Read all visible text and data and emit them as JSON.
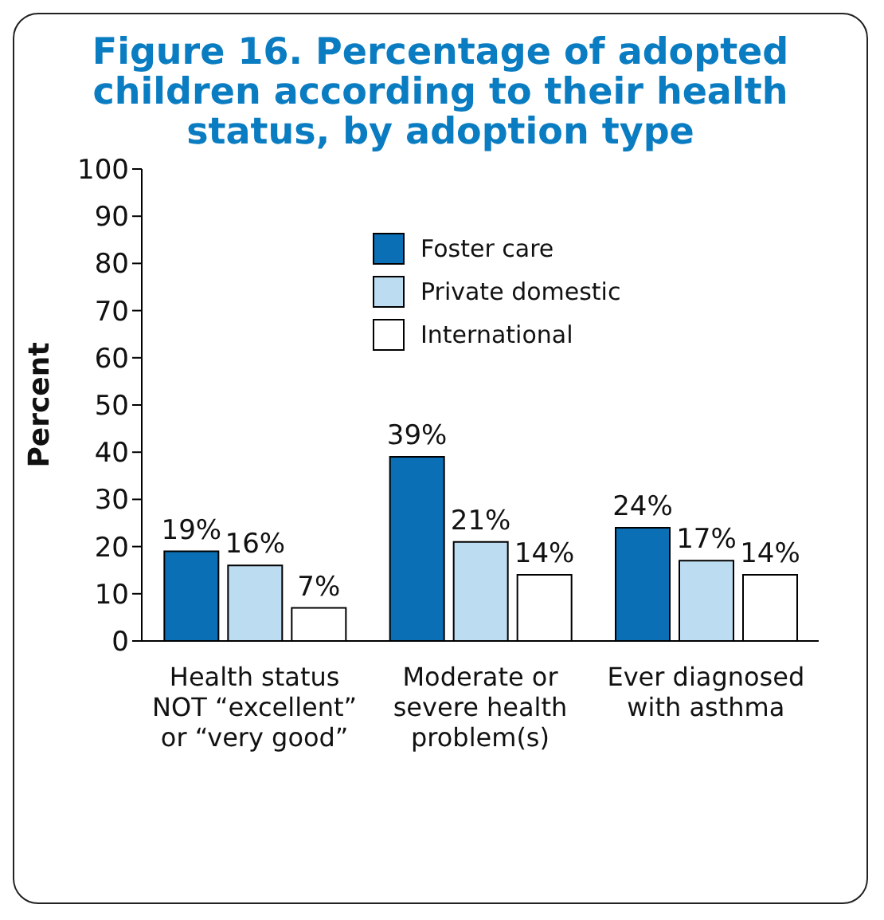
{
  "chart_data": {
    "type": "bar",
    "title": "Figure 16. Percentage of adopted children according to their health status, by adoption type",
    "ylabel": "Percent",
    "categories": [
      "Health status NOT “excellent” or “very good”",
      "Moderate or severe health problem(s)",
      "Ever diagnosed with asthma"
    ],
    "series": [
      {
        "name": "Foster care",
        "color": "#0a6fb5",
        "values": [
          19,
          39,
          24
        ],
        "value_labels": [
          "19%",
          "39%",
          "24%"
        ]
      },
      {
        "name": "Private domestic",
        "color": "#bcdcf1",
        "values": [
          16,
          21,
          17
        ],
        "value_labels": [
          "16%",
          "21%",
          "17%"
        ]
      },
      {
        "name": "International",
        "color": "#ffffff",
        "values": [
          7,
          14,
          14
        ],
        "value_labels": [
          "7%",
          "14%",
          "14%"
        ]
      }
    ],
    "ylim": [
      0,
      100
    ],
    "yticks": [
      0,
      10,
      20,
      30,
      40,
      50,
      60,
      70,
      80,
      90,
      100
    ],
    "grid": false,
    "legend": "top"
  }
}
